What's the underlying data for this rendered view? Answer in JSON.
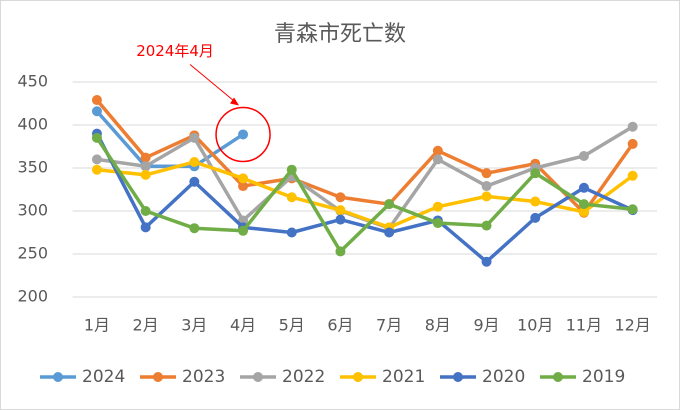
{
  "chart_data": {
    "type": "line",
    "title": "青森市死亡数",
    "categories": [
      "1月",
      "2月",
      "3月",
      "4月",
      "5月",
      "6月",
      "7月",
      "8月",
      "9月",
      "10月",
      "11月",
      "12月"
    ],
    "series": [
      {
        "name": "2024",
        "color": "#5b9bd5",
        "values": [
          416,
          352,
          352,
          389,
          null,
          null,
          null,
          null,
          null,
          null,
          null,
          null
        ]
      },
      {
        "name": "2023",
        "color": "#ed7d31",
        "values": [
          429,
          362,
          388,
          329,
          338,
          316,
          308,
          370,
          344,
          355,
          298,
          378
        ]
      },
      {
        "name": "2022",
        "color": "#a5a5a5",
        "values": [
          360,
          352,
          385,
          289,
          340,
          300,
          280,
          360,
          329,
          350,
          364,
          398
        ]
      },
      {
        "name": "2021",
        "color": "#ffc000",
        "values": [
          348,
          342,
          357,
          338,
          316,
          301,
          281,
          305,
          317,
          311,
          299,
          341
        ]
      },
      {
        "name": "2020",
        "color": "#4472c4",
        "values": [
          390,
          281,
          334,
          281,
          275,
          290,
          275,
          289,
          241,
          292,
          327,
          301
        ]
      },
      {
        "name": "2019",
        "color": "#70ad47",
        "values": [
          385,
          300,
          280,
          277,
          348,
          253,
          308,
          286,
          283,
          344,
          308,
          302
        ]
      }
    ],
    "ylim": [
      200,
      450
    ],
    "yticks": [
      200,
      250,
      300,
      350,
      400,
      450
    ],
    "grid": true,
    "legend": "bottom",
    "annotation": {
      "text": "2024年4月",
      "color": "#ff0000"
    }
  }
}
